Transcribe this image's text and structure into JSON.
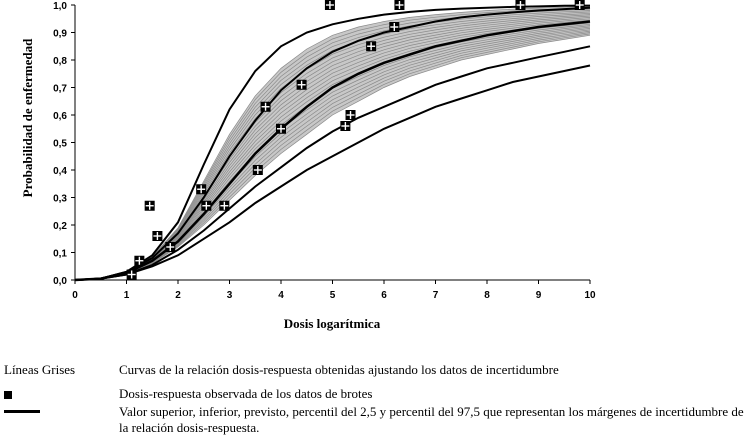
{
  "chart_data": {
    "type": "line",
    "xlabel": "Dosis logarítmica",
    "ylabel": "Probabilidad de enfermedad",
    "xlim": [
      0,
      10
    ],
    "ylim": [
      0,
      1
    ],
    "x_ticks": [
      "0",
      "1",
      "2",
      "3",
      "4",
      "5",
      "6",
      "7",
      "8",
      "9",
      "10"
    ],
    "y_ticks": [
      "0,0",
      "0,1",
      "0,2",
      "0,3",
      "0,4",
      "0,5",
      "0,6",
      "0,7",
      "0,8",
      "0,9",
      "1,0"
    ],
    "grid": false,
    "observed_points": [
      {
        "x": 1.1,
        "y": 0.02
      },
      {
        "x": 1.25,
        "y": 0.07
      },
      {
        "x": 1.45,
        "y": 0.27
      },
      {
        "x": 1.6,
        "y": 0.16
      },
      {
        "x": 1.85,
        "y": 0.12
      },
      {
        "x": 2.45,
        "y": 0.33
      },
      {
        "x": 2.55,
        "y": 0.27
      },
      {
        "x": 2.9,
        "y": 0.27
      },
      {
        "x": 3.55,
        "y": 0.4
      },
      {
        "x": 3.7,
        "y": 0.63
      },
      {
        "x": 4.0,
        "y": 0.55
      },
      {
        "x": 4.4,
        "y": 0.71
      },
      {
        "x": 4.95,
        "y": 1.0
      },
      {
        "x": 5.25,
        "y": 0.56
      },
      {
        "x": 5.35,
        "y": 0.6
      },
      {
        "x": 5.75,
        "y": 0.85
      },
      {
        "x": 6.2,
        "y": 0.92
      },
      {
        "x": 6.3,
        "y": 1.0
      },
      {
        "x": 8.65,
        "y": 1.0
      },
      {
        "x": 9.8,
        "y": 1.0
      }
    ],
    "black_curves": [
      {
        "x": [
          0,
          0.5,
          1,
          1.5,
          2,
          2.5,
          3,
          3.5,
          4,
          4.5,
          5,
          5.5,
          6,
          6.5,
          7,
          7.5,
          8,
          8.5,
          9,
          9.5,
          10
        ],
        "y": [
          0,
          0.005,
          0.03,
          0.09,
          0.21,
          0.42,
          0.62,
          0.76,
          0.85,
          0.9,
          0.93,
          0.95,
          0.965,
          0.975,
          0.982,
          0.987,
          0.99,
          0.993,
          0.995,
          0.997,
          0.998
        ]
      },
      {
        "x": [
          0,
          0.5,
          1,
          1.5,
          2,
          2.5,
          3,
          3.5,
          4,
          4.5,
          5,
          5.5,
          6,
          6.5,
          7,
          7.5,
          8,
          8.5,
          9,
          9.5,
          10
        ],
        "y": [
          0,
          0.005,
          0.03,
          0.08,
          0.17,
          0.3,
          0.45,
          0.58,
          0.69,
          0.77,
          0.83,
          0.87,
          0.9,
          0.92,
          0.94,
          0.955,
          0.965,
          0.973,
          0.98,
          0.985,
          0.99
        ]
      },
      {
        "x": [
          0,
          0.5,
          1,
          1.5,
          2,
          2.5,
          3,
          3.5,
          4,
          4.5,
          5,
          5.5,
          6,
          6.5,
          7,
          7.5,
          8,
          8.5,
          9,
          9.5,
          10
        ],
        "y": [
          0,
          0.005,
          0.025,
          0.07,
          0.14,
          0.24,
          0.35,
          0.46,
          0.55,
          0.63,
          0.7,
          0.75,
          0.79,
          0.82,
          0.85,
          0.87,
          0.89,
          0.905,
          0.92,
          0.93,
          0.94
        ]
      },
      {
        "x": [
          0,
          0.5,
          1,
          1.5,
          2,
          2.5,
          3,
          3.5,
          4,
          4.5,
          5,
          5.5,
          6,
          6.5,
          7,
          7.5,
          8,
          8.5,
          9,
          9.5,
          10
        ],
        "y": [
          0,
          0.005,
          0.02,
          0.055,
          0.11,
          0.18,
          0.26,
          0.34,
          0.41,
          0.48,
          0.54,
          0.59,
          0.63,
          0.67,
          0.71,
          0.74,
          0.77,
          0.79,
          0.81,
          0.83,
          0.85
        ]
      },
      {
        "x": [
          0,
          0.5,
          1,
          1.5,
          2,
          2.5,
          3,
          3.5,
          4,
          4.5,
          5,
          5.5,
          6,
          6.5,
          7,
          7.5,
          8,
          8.5,
          9,
          9.5,
          10
        ],
        "y": [
          0,
          0.005,
          0.02,
          0.05,
          0.09,
          0.15,
          0.21,
          0.28,
          0.34,
          0.4,
          0.45,
          0.5,
          0.55,
          0.59,
          0.63,
          0.66,
          0.69,
          0.72,
          0.74,
          0.76,
          0.78
        ]
      }
    ],
    "gray_band": {
      "count": 22,
      "lower": [
        0,
        0.005,
        0.022,
        0.06,
        0.12,
        0.2,
        0.29,
        0.38,
        0.46,
        0.53,
        0.6,
        0.65,
        0.7,
        0.74,
        0.77,
        0.8,
        0.82,
        0.84,
        0.86,
        0.875,
        0.89
      ],
      "upper": [
        0,
        0.005,
        0.03,
        0.085,
        0.19,
        0.36,
        0.53,
        0.67,
        0.77,
        0.84,
        0.89,
        0.92,
        0.94,
        0.955,
        0.965,
        0.973,
        0.98,
        0.985,
        0.989,
        0.992,
        0.995
      ]
    }
  },
  "legend": {
    "items": [
      {
        "key": "Líneas Grises",
        "text": "Curvas de la relación dosis-respuesta obtenidas ajustando los datos de incertidumbre"
      },
      {
        "key": "square",
        "text": "Dosis-respuesta observada de los datos de brotes"
      },
      {
        "key": "line",
        "text": "Valor superior, inferior, previsto, percentil del 2,5 y percentil del 97,5 que representan los márgenes de incertidumbre de la relación dosis-respuesta."
      }
    ]
  },
  "colors": {
    "gray_lines": "#8a8a8a",
    "band_fill": "#c8c8c8",
    "black_lines": "#000000"
  }
}
